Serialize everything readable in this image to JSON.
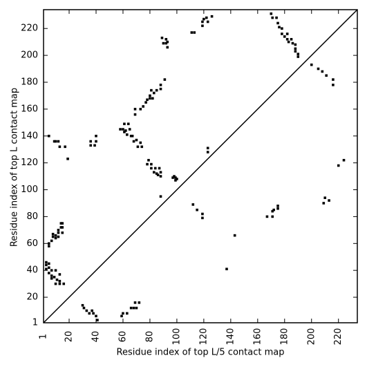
{
  "chart_data": {
    "type": "scatter",
    "xlabel": "Residue index of top L/5 contact map",
    "ylabel": "Residue index of top L contact map",
    "color": "#000000",
    "xlim": [
      1,
      234
    ],
    "ylim": [
      1,
      234
    ],
    "xticks": [
      1,
      20,
      40,
      60,
      80,
      100,
      120,
      140,
      160,
      180,
      200,
      220
    ],
    "yticks": [
      1,
      20,
      40,
      60,
      80,
      100,
      120,
      140,
      160,
      180,
      200,
      220
    ],
    "x": [
      3,
      3,
      5,
      5,
      7,
      7,
      9,
      10,
      11,
      13,
      13,
      16,
      3,
      5,
      7,
      10,
      13,
      5,
      7,
      8,
      8,
      10,
      10,
      12,
      12,
      14,
      14,
      15,
      15,
      15,
      12,
      5,
      5,
      9,
      10,
      12,
      13,
      17,
      19,
      36,
      36,
      39,
      40,
      40,
      58,
      60,
      61,
      61,
      62,
      63,
      64,
      65,
      66,
      67,
      68,
      69,
      69,
      70,
      71,
      73,
      73,
      74,
      75,
      77,
      78,
      78,
      79,
      80,
      80,
      81,
      81,
      81,
      82,
      83,
      83,
      84,
      85,
      85,
      86,
      87,
      88,
      88,
      88,
      88,
      88,
      89,
      90,
      91,
      92,
      92,
      93,
      93,
      97,
      98,
      99,
      99,
      100,
      111,
      112,
      113,
      115,
      119,
      119,
      119,
      119,
      120,
      122,
      123,
      123,
      123,
      126,
      137,
      143,
      167,
      171,
      171,
      172,
      175,
      175,
      209,
      210,
      213,
      220,
      224,
      200,
      205,
      208,
      211,
      216,
      216,
      170,
      171,
      174,
      175,
      176,
      178,
      178,
      180,
      182,
      182,
      183,
      185,
      186,
      188,
      188,
      188,
      190,
      190,
      30,
      31,
      33,
      35,
      37,
      38,
      40,
      41,
      59,
      60,
      63,
      66,
      68,
      69,
      70,
      72
    ],
    "values": [
      44,
      41,
      42,
      38,
      36,
      34,
      35,
      30,
      33,
      32,
      30,
      30,
      46,
      45,
      40,
      40,
      37,
      60,
      62,
      65,
      67,
      66,
      64,
      68,
      70,
      72,
      75,
      68,
      72,
      75,
      65,
      58,
      140,
      136,
      136,
      136,
      132,
      132,
      123,
      133,
      136,
      133,
      140,
      136,
      145,
      145,
      149,
      143,
      144,
      141,
      149,
      145,
      140,
      140,
      136,
      156,
      160,
      137,
      132,
      135,
      160,
      132,
      162,
      165,
      167,
      119,
      122,
      168,
      170,
      174,
      116,
      119,
      168,
      172,
      113,
      116,
      174,
      112,
      111,
      116,
      178,
      175,
      113,
      110,
      95,
      213,
      209,
      182,
      212,
      209,
      210,
      206,
      109,
      110,
      109,
      107,
      108,
      217,
      89,
      217,
      85,
      82,
      79,
      222,
      225,
      227,
      228,
      225,
      131,
      128,
      229,
      41,
      66,
      80,
      80,
      84,
      85,
      86,
      88,
      90,
      94,
      92,
      118,
      122,
      193,
      190,
      188,
      185,
      182,
      178,
      231,
      228,
      228,
      224,
      221,
      220,
      216,
      214,
      216,
      212,
      210,
      212,
      209,
      208,
      205,
      203,
      201,
      199,
      14,
      12,
      10,
      8,
      10,
      8,
      6,
      3,
      6,
      8,
      8,
      12,
      12,
      16,
      12,
      16
    ]
  }
}
